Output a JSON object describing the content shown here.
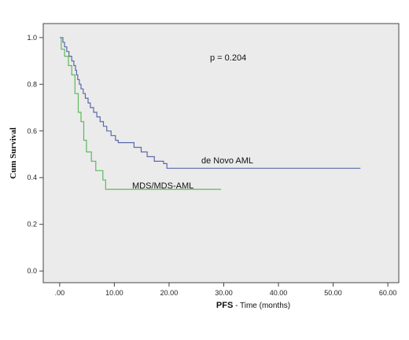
{
  "chart_data": {
    "type": "line",
    "step": true,
    "ylabel": "Cum Survival",
    "xlabel_bold": "PFS",
    "xlabel_rest": " - Time (months)",
    "x_ticks": [
      ".00",
      "10.00",
      "20.00",
      "30.00",
      "40.00",
      "50.00",
      "60.00"
    ],
    "x_tick_values": [
      0,
      10,
      20,
      30,
      40,
      50,
      60
    ],
    "y_ticks": [
      "0.0",
      "0.2",
      "0.4",
      "0.6",
      "0.8",
      "1.0"
    ],
    "y_tick_values": [
      0,
      0.2,
      0.4,
      0.6,
      0.8,
      1.0
    ],
    "xlim": [
      -3,
      62
    ],
    "ylim": [
      -0.05,
      1.06
    ],
    "annotation": "p = 0.204",
    "plot_background": "#ebebeb",
    "series": [
      {
        "name": "de Novo AML",
        "color": "#5a6aa8",
        "points": [
          [
            0,
            1.0
          ],
          [
            0.6,
            0.98
          ],
          [
            0.9,
            0.96
          ],
          [
            1.3,
            0.94
          ],
          [
            1.7,
            0.92
          ],
          [
            2.2,
            0.9
          ],
          [
            2.6,
            0.88
          ],
          [
            2.9,
            0.86
          ],
          [
            3.1,
            0.84
          ],
          [
            3.3,
            0.82
          ],
          [
            3.6,
            0.8
          ],
          [
            3.9,
            0.78
          ],
          [
            4.3,
            0.76
          ],
          [
            4.7,
            0.74
          ],
          [
            5.2,
            0.72
          ],
          [
            5.6,
            0.7
          ],
          [
            6.2,
            0.68
          ],
          [
            6.8,
            0.66
          ],
          [
            7.4,
            0.64
          ],
          [
            8.0,
            0.62
          ],
          [
            8.6,
            0.6
          ],
          [
            9.4,
            0.58
          ],
          [
            10.2,
            0.56
          ],
          [
            10.7,
            0.55
          ],
          [
            13.6,
            0.53
          ],
          [
            14.9,
            0.51
          ],
          [
            16.0,
            0.49
          ],
          [
            17.3,
            0.47
          ],
          [
            19.0,
            0.46
          ],
          [
            19.6,
            0.44
          ],
          [
            55,
            0.44
          ]
        ]
      },
      {
        "name": "MDS/MDS-AML",
        "color": "#5fb85f",
        "points": [
          [
            0,
            1.0
          ],
          [
            0.3,
            0.95
          ],
          [
            0.9,
            0.92
          ],
          [
            1.6,
            0.88
          ],
          [
            2.2,
            0.84
          ],
          [
            2.8,
            0.76
          ],
          [
            3.4,
            0.68
          ],
          [
            3.9,
            0.64
          ],
          [
            4.4,
            0.56
          ],
          [
            4.9,
            0.51
          ],
          [
            5.8,
            0.47
          ],
          [
            6.6,
            0.43
          ],
          [
            7.9,
            0.39
          ],
          [
            8.4,
            0.35
          ],
          [
            29.5,
            0.35
          ]
        ]
      }
    ]
  }
}
